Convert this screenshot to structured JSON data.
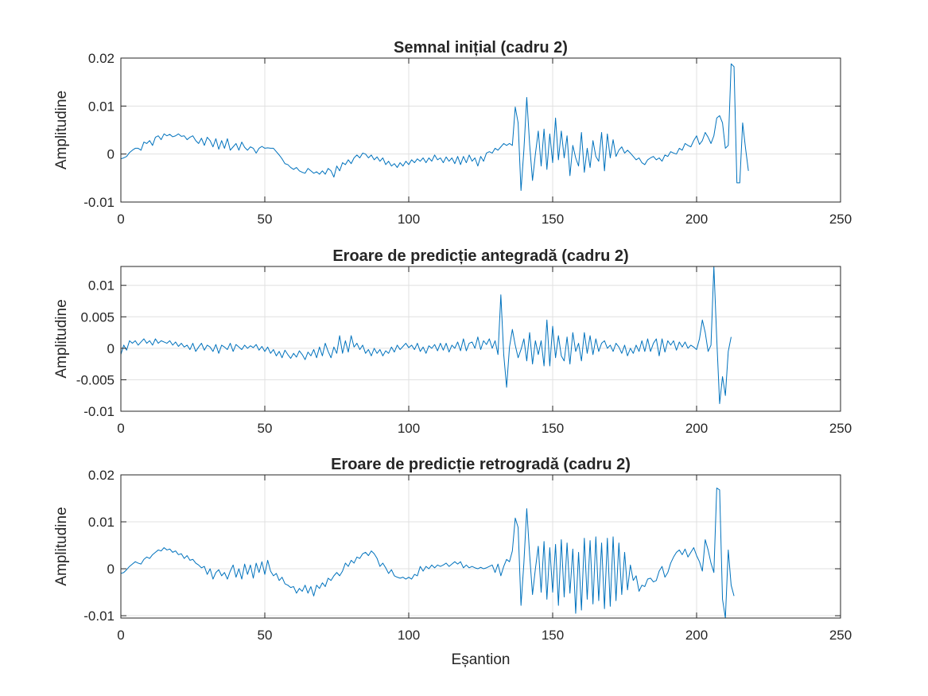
{
  "colors": {
    "line": "#0072BD",
    "grid": "#e0e0e0",
    "axis": "#262626",
    "background": "#ffffff"
  },
  "chart_data": [
    {
      "type": "line",
      "title": "Semnal inițial (cadru 2)",
      "xlabel": "",
      "ylabel": "Amplitudine",
      "xlim": [
        0,
        250
      ],
      "ylim": [
        -0.01,
        0.02
      ],
      "xticks": [
        0,
        50,
        100,
        150,
        200,
        250
      ],
      "xtick_labels": [
        "0",
        "50",
        "100",
        "150",
        "200",
        "250"
      ],
      "yticks": [
        -0.01,
        0,
        0.01,
        0.02
      ],
      "ytick_labels": [
        "-0.01",
        "0",
        "0.01",
        "0.02"
      ],
      "grid": true,
      "series": [
        {
          "x_start": 0,
          "x_step": 1,
          "values": [
            -0.001,
            -0.0008,
            -0.0005,
            0.0003,
            0.0008,
            0.0012,
            0.0012,
            0.0008,
            0.0025,
            0.0022,
            0.0028,
            0.0018,
            0.0035,
            0.0038,
            0.003,
            0.0042,
            0.0038,
            0.0041,
            0.0036,
            0.0038,
            0.0042,
            0.0037,
            0.0038,
            0.003,
            0.0035,
            0.0038,
            0.0028,
            0.0022,
            0.0033,
            0.0018,
            0.0035,
            0.0028,
            0.0015,
            0.0032,
            0.001,
            0.0028,
            0.0012,
            0.0032,
            0.0008,
            0.0015,
            0.0022,
            0.0008,
            0.0025,
            0.0014,
            0.0008,
            0.0015,
            0.0012,
            0.0002,
            0.0012,
            0.0016,
            0.0012,
            0.0013,
            0.0012,
            0.0012,
            0.0005,
            -0.0002,
            -0.001,
            -0.002,
            -0.0022,
            -0.0028,
            -0.0032,
            -0.0028,
            -0.0035,
            -0.0038,
            -0.004,
            -0.003,
            -0.0035,
            -0.004,
            -0.0037,
            -0.0042,
            -0.0035,
            -0.0042,
            -0.003,
            -0.0035,
            -0.0048,
            -0.0025,
            -0.0035,
            -0.0018,
            -0.0022,
            -0.0012,
            -0.002,
            -0.0008,
            -0.0002,
            -0.0008,
            0.0002,
            0.0,
            -0.0008,
            -0.0002,
            -0.0012,
            -0.0006,
            -0.0015,
            -0.0008,
            -0.0022,
            -0.0015,
            -0.0025,
            -0.002,
            -0.0028,
            -0.0018,
            -0.0025,
            -0.0015,
            -0.0022,
            -0.0012,
            -0.0018,
            -0.001,
            -0.0015,
            -0.0008,
            -0.0018,
            -0.0008,
            -0.0015,
            -0.0002,
            -0.0012,
            -0.0008,
            -0.0018,
            -0.0006,
            -0.0015,
            -0.0008,
            -0.002,
            -0.0005,
            -0.0022,
            -0.0005,
            -0.0018,
            -0.0002,
            -0.0015,
            -0.0008,
            -0.0025,
            -0.0005,
            -0.0015,
            0.0002,
            0.0005,
            0.0002,
            0.0012,
            0.0008,
            0.0015,
            0.0022,
            0.0018,
            0.0022,
            0.0018,
            0.0098,
            0.0065,
            -0.0076,
            0.0008,
            0.0118,
            0.002,
            -0.0055,
            0.0,
            0.0048,
            -0.0025,
            0.0052,
            -0.0032,
            0.0042,
            -0.0018,
            0.0075,
            -0.0012,
            0.0048,
            -0.0008,
            0.0038,
            -0.0045,
            0.0018,
            -0.0008,
            -0.0025,
            0.0045,
            -0.0038,
            0.0012,
            -0.0028,
            0.0028,
            -0.0005,
            -0.0015,
            0.0045,
            -0.0035,
            0.0042,
            -0.0008,
            0.003,
            -0.0005,
            0.0008,
            0.0015,
            0.0002,
            0.0008,
            0.0002,
            -0.0005,
            -0.0012,
            -0.0008,
            -0.0018,
            -0.0022,
            -0.0012,
            -0.0008,
            -0.0005,
            -0.0012,
            -0.0008,
            -0.0015,
            -0.0002,
            -0.0005,
            0.0005,
            0.0002,
            0.0,
            0.0012,
            0.0008,
            0.0022,
            0.0018,
            0.0015,
            0.0028,
            0.0038,
            0.002,
            0.0028,
            0.0045,
            0.0035,
            0.0022,
            0.0038,
            0.0075,
            0.008,
            0.0065,
            0.0012,
            0.0018,
            0.0188,
            0.0182,
            -0.006,
            -0.006,
            0.0065,
            0.0012,
            -0.0035
          ]
        }
      ]
    },
    {
      "type": "line",
      "title": "Eroare de predicție antegradă (cadru 2)",
      "xlabel": "",
      "ylabel": "Amplitudine",
      "xlim": [
        0,
        250
      ],
      "ylim": [
        -0.01,
        0.013
      ],
      "xticks": [
        0,
        50,
        100,
        150,
        200,
        250
      ],
      "xtick_labels": [
        "0",
        "50",
        "100",
        "150",
        "200",
        "250"
      ],
      "yticks": [
        -0.01,
        -0.005,
        0,
        0.005,
        0.01
      ],
      "ytick_labels": [
        "-0.01",
        "-0.005",
        "0",
        "0.005",
        "0.01"
      ],
      "grid": true,
      "series": [
        {
          "x_start": 0,
          "x_step": 1,
          "values": [
            -0.001,
            0.0005,
            -0.0003,
            0.0012,
            0.0008,
            0.0012,
            0.0005,
            0.001,
            0.0015,
            0.0008,
            0.0012,
            0.0005,
            0.0015,
            0.0008,
            0.0012,
            0.001,
            0.0008,
            0.0012,
            0.0005,
            0.001,
            0.0003,
            0.0008,
            0.0002,
            0.0005,
            -0.0002,
            0.0008,
            -0.0005,
            0.0002,
            0.0008,
            -0.0003,
            0.0005,
            0.0002,
            -0.0005,
            0.0006,
            -0.0008,
            0.0005,
            0.0002,
            -0.0002,
            0.0008,
            -0.0005,
            0.0006,
            0.0002,
            -0.0002,
            0.0005,
            0.0,
            0.0004,
            0.0001,
            0.0006,
            -0.0003,
            0.0003,
            -0.0005,
            0.0002,
            -0.0008,
            -0.0002,
            -0.0012,
            -0.0005,
            -0.0015,
            -0.0003,
            -0.001,
            -0.0016,
            -0.0008,
            -0.0014,
            -0.0004,
            -0.001,
            -0.0018,
            -0.0006,
            -0.0012,
            -0.0002,
            -0.0015,
            0.0002,
            -0.0012,
            0.0008,
            -0.0005,
            -0.0015,
            0.0002,
            -0.0008,
            0.002,
            -0.0008,
            0.0012,
            -0.0006,
            0.002,
            0.0002,
            0.0008,
            -0.0002,
            0.0005,
            -0.0008,
            -0.0002,
            -0.0012,
            0.0,
            -0.0008,
            -0.0002,
            -0.0012,
            -0.0004,
            -0.0008,
            0.0002,
            -0.0006,
            0.0005,
            -0.0002,
            0.0003,
            0.0008,
            0.0001,
            0.0005,
            -0.0002,
            0.0008,
            -0.0005,
            0.0002,
            -0.0008,
            0.0004,
            0.0,
            0.0006,
            -0.0004,
            0.0008,
            -0.0003,
            0.0008,
            -0.0006,
            0.0005,
            0.0,
            0.001,
            -0.0004,
            0.0015,
            -0.0004,
            0.0008,
            0.001,
            0.0,
            0.0018,
            -0.0002,
            0.0012,
            0.0006,
            0.0015,
            0.0,
            0.0012,
            -0.001,
            0.0085,
            -0.001,
            -0.0062,
            0.0002,
            0.003,
            0.0005,
            -0.0015,
            -0.0002,
            0.0015,
            -0.002,
            0.0025,
            -0.0025,
            0.0012,
            -0.001,
            0.0012,
            -0.0028,
            0.0045,
            -0.0028,
            0.0035,
            -0.0015,
            0.002,
            -0.0012,
            -0.002,
            0.0018,
            -0.0025,
            0.0025,
            -0.0005,
            0.0008,
            -0.002,
            0.0025,
            -0.0008,
            0.002,
            -0.001,
            0.0015,
            -0.0005,
            0.0008,
            0.0012,
            0.0,
            0.0005,
            -0.0005,
            0.0008,
            0.0002,
            -0.0008,
            0.0005,
            -0.0012,
            0.0,
            -0.0008,
            0.0005,
            -0.0005,
            0.0012,
            -0.0005,
            0.0015,
            -0.0005,
            0.0008,
            0.0015,
            -0.0012,
            0.0015,
            -0.0006,
            0.0012,
            0.0005,
            0.0012,
            -0.0003,
            0.001,
            0.0002,
            0.001,
            0.0,
            0.0005,
            0.0002,
            -0.0002,
            0.0015,
            0.0045,
            0.0025,
            -0.0005,
            0.0005,
            0.013,
            0.0015,
            -0.0088,
            -0.0045,
            -0.0075,
            -0.0005,
            0.0018
          ]
        }
      ]
    },
    {
      "type": "line",
      "title": "Eroare de predicție retrogradă (cadru 2)",
      "xlabel": "Eșantion",
      "ylabel": "Amplitudine",
      "xlim": [
        0,
        250
      ],
      "ylim": [
        -0.0105,
        0.02
      ],
      "xticks": [
        0,
        50,
        100,
        150,
        200,
        250
      ],
      "xtick_labels": [
        "0",
        "50",
        "100",
        "150",
        "200",
        "250"
      ],
      "yticks": [
        -0.01,
        0,
        0.01,
        0.02
      ],
      "ytick_labels": [
        "-0.01",
        "0",
        "0.01",
        "0.02"
      ],
      "grid": true,
      "series": [
        {
          "x_start": 0,
          "x_step": 1,
          "values": [
            -0.001,
            -0.0008,
            -0.0002,
            0.0005,
            0.001,
            0.0015,
            0.0012,
            0.001,
            0.002,
            0.0025,
            0.0022,
            0.003,
            0.0035,
            0.004,
            0.0038,
            0.0045,
            0.004,
            0.0042,
            0.0035,
            0.0038,
            0.003,
            0.0032,
            0.0022,
            0.0028,
            0.0018,
            0.002,
            0.0012,
            0.0008,
            0.0002,
            0.0005,
            -0.0012,
            0.0,
            -0.0022,
            -0.0008,
            -0.0002,
            -0.0015,
            -0.0008,
            -0.0022,
            -0.0005,
            0.0008,
            -0.0018,
            0.0,
            -0.0022,
            0.001,
            -0.0012,
            0.0008,
            -0.002,
            0.0012,
            -0.0008,
            0.0015,
            -0.0012,
            0.0018,
            -0.0005,
            -0.0015,
            -0.001,
            -0.0025,
            -0.0018,
            -0.0032,
            -0.0035,
            -0.004,
            -0.0038,
            -0.0052,
            -0.0042,
            -0.0048,
            -0.0035,
            -0.0052,
            -0.0038,
            -0.0058,
            -0.0035,
            -0.0042,
            -0.003,
            -0.0038,
            -0.002,
            -0.0025,
            -0.0015,
            -0.0008,
            -0.0015,
            -0.0005,
            0.0012,
            0.0005,
            0.0018,
            0.0012,
            0.0025,
            0.0022,
            0.0032,
            0.0035,
            0.0028,
            0.0038,
            0.0032,
            0.0022,
            0.0005,
            0.0012,
            0.0002,
            -0.001,
            -0.0002,
            -0.0015,
            -0.0018,
            -0.002,
            -0.0018,
            -0.0022,
            -0.0018,
            -0.0022,
            -0.0012,
            -0.0015,
            0.0005,
            -0.0005,
            0.0005,
            0.0,
            0.0008,
            0.0002,
            0.0008,
            0.0005,
            0.0008,
            0.0012,
            0.0005,
            0.001,
            0.0015,
            0.001,
            0.0015,
            0.0002,
            0.0008,
            0.0002,
            0.0005,
            0.0002,
            0.0,
            0.0003,
            0.0,
            0.0002,
            0.0005,
            0.0008,
            -0.0008,
            0.001,
            -0.0015,
            0.0005,
            0.002,
            0.0015,
            0.0038,
            0.0108,
            0.0088,
            -0.0078,
            0.0012,
            0.0128,
            0.003,
            -0.0055,
            0.0,
            0.0048,
            -0.005,
            0.0058,
            -0.0065,
            0.0045,
            -0.005,
            0.0052,
            -0.0078,
            0.0062,
            -0.006,
            0.0055,
            -0.0052,
            0.0042,
            -0.0095,
            0.0035,
            -0.0088,
            0.0065,
            -0.0065,
            0.006,
            -0.0075,
            0.0068,
            -0.0068,
            0.0055,
            -0.0085,
            0.0065,
            -0.008,
            0.0068,
            -0.0068,
            0.0055,
            -0.0055,
            0.0035,
            -0.0045,
            0.0008,
            -0.0025,
            -0.0015,
            -0.0048,
            -0.0035,
            -0.0038,
            -0.0022,
            -0.002,
            -0.0028,
            -0.0025,
            -0.0005,
            0.0005,
            -0.0018,
            -0.0008,
            0.0012,
            0.0025,
            0.0035,
            0.004,
            0.003,
            0.0042,
            0.0025,
            0.0035,
            0.0045,
            0.0028,
            0.0015,
            -0.0005,
            0.0062,
            0.004,
            0.0012,
            -0.0008,
            0.0172,
            0.0168,
            -0.0065,
            -0.0105,
            0.004,
            -0.0035,
            -0.0058
          ]
        }
      ]
    }
  ]
}
